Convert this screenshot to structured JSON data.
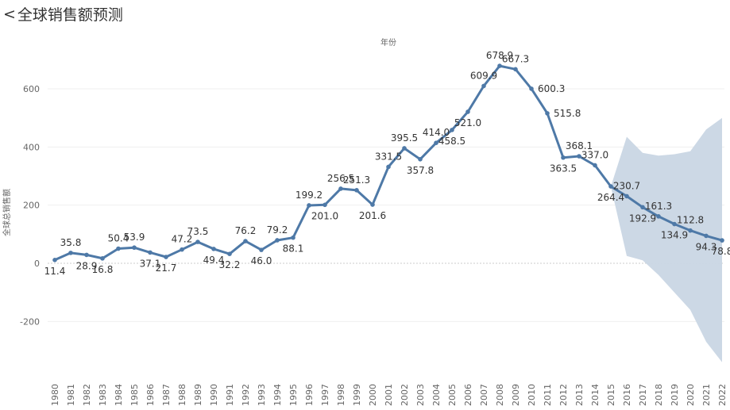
{
  "header": {
    "back_glyph": "<",
    "title": "全球销售额预测"
  },
  "chart_data": {
    "type": "line",
    "title": "全球销售额预测",
    "xlabel": "年份",
    "ylabel": "全球总销售额",
    "ylim": [
      -400,
      720
    ],
    "yticks": [
      -200,
      0,
      200,
      400,
      600
    ],
    "grid": true,
    "x": [
      1980,
      1981,
      1982,
      1983,
      1984,
      1985,
      1986,
      1987,
      1988,
      1989,
      1990,
      1991,
      1992,
      1993,
      1994,
      1995,
      1996,
      1997,
      1998,
      1999,
      2000,
      2001,
      2002,
      2003,
      2004,
      2005,
      2006,
      2007,
      2008,
      2009,
      2010,
      2011,
      2012,
      2013,
      2014,
      2015,
      2016,
      2017,
      2018,
      2019,
      2020,
      2021,
      2022
    ],
    "series": [
      {
        "name": "全球总销售额",
        "color": "#4e79a7",
        "values": [
          11.4,
          35.8,
          28.9,
          16.8,
          50.4,
          53.9,
          37.1,
          21.7,
          47.2,
          73.5,
          49.4,
          32.2,
          76.2,
          46.0,
          79.2,
          88.1,
          199.2,
          201.0,
          256.5,
          251.3,
          201.6,
          331.5,
          395.5,
          357.8,
          414.0,
          458.5,
          521.0,
          609.9,
          678.9,
          667.3,
          600.3,
          515.8,
          363.5,
          368.1,
          337.0,
          264.4,
          230.7,
          192.9,
          161.3,
          134.9,
          112.8,
          94.3,
          78.8
        ]
      }
    ],
    "forecast_band": {
      "color": "#c9d6e4",
      "x": [
        2015,
        2016,
        2017,
        2018,
        2019,
        2020,
        2021,
        2022
      ],
      "upper": [
        264.4,
        435,
        380,
        370,
        375,
        385,
        460,
        500
      ],
      "lower": [
        264.4,
        25,
        10,
        -40,
        -100,
        -160,
        -270,
        -340
      ]
    },
    "data_labels": [
      {
        "year": 1980,
        "value": 11.4,
        "pos": "below"
      },
      {
        "year": 1981,
        "value": 35.8,
        "pos": "above"
      },
      {
        "year": 1982,
        "value": 28.9,
        "pos": "below"
      },
      {
        "year": 1983,
        "value": 16.8,
        "pos": "below"
      },
      {
        "year": 1984,
        "value": 50.4,
        "pos": "above"
      },
      {
        "year": 1985,
        "value": 53.9,
        "pos": "above"
      },
      {
        "year": 1986,
        "value": 37.1,
        "pos": "below"
      },
      {
        "year": 1987,
        "value": 21.7,
        "pos": "below"
      },
      {
        "year": 1988,
        "value": 47.2,
        "pos": "above"
      },
      {
        "year": 1989,
        "value": 73.5,
        "pos": "above"
      },
      {
        "year": 1990,
        "value": 49.4,
        "pos": "below"
      },
      {
        "year": 1991,
        "value": 32.2,
        "pos": "below"
      },
      {
        "year": 1992,
        "value": 76.2,
        "pos": "above"
      },
      {
        "year": 1993,
        "value": 46.0,
        "pos": "below"
      },
      {
        "year": 1994,
        "value": 79.2,
        "pos": "above"
      },
      {
        "year": 1995,
        "value": 88.1,
        "pos": "below"
      },
      {
        "year": 1996,
        "value": 199.2,
        "pos": "above"
      },
      {
        "year": 1997,
        "value": 201.0,
        "pos": "below"
      },
      {
        "year": 1998,
        "value": 256.5,
        "pos": "above"
      },
      {
        "year": 1999,
        "value": 251.3,
        "pos": "above"
      },
      {
        "year": 2000,
        "value": 201.6,
        "pos": "below"
      },
      {
        "year": 2001,
        "value": 331.5,
        "pos": "above"
      },
      {
        "year": 2002,
        "value": 395.5,
        "pos": "above"
      },
      {
        "year": 2003,
        "value": 357.8,
        "pos": "below"
      },
      {
        "year": 2004,
        "value": 414.0,
        "pos": "above"
      },
      {
        "year": 2005,
        "value": 458.5,
        "pos": "below"
      },
      {
        "year": 2006,
        "value": 521.0,
        "pos": "below"
      },
      {
        "year": 2007,
        "value": 609.9,
        "pos": "above"
      },
      {
        "year": 2008,
        "value": 678.9,
        "pos": "above"
      },
      {
        "year": 2009,
        "value": 667.3,
        "pos": "above"
      },
      {
        "year": 2010,
        "value": 600.3,
        "pos": "right"
      },
      {
        "year": 2011,
        "value": 515.8,
        "pos": "right"
      },
      {
        "year": 2012,
        "value": 363.5,
        "pos": "below"
      },
      {
        "year": 2013,
        "value": 368.1,
        "pos": "above"
      },
      {
        "year": 2014,
        "value": 337.0,
        "pos": "above"
      },
      {
        "year": 2015,
        "value": 264.4,
        "pos": "below"
      },
      {
        "year": 2016,
        "value": 230.7,
        "pos": "above"
      },
      {
        "year": 2017,
        "value": 192.9,
        "pos": "below"
      },
      {
        "year": 2018,
        "value": 161.3,
        "pos": "above"
      },
      {
        "year": 2019,
        "value": 134.9,
        "pos": "below"
      },
      {
        "year": 2020,
        "value": 112.8,
        "pos": "above"
      },
      {
        "year": 2021,
        "value": 94.3,
        "pos": "below"
      },
      {
        "year": 2022,
        "value": 78.8,
        "pos": "below"
      }
    ]
  }
}
